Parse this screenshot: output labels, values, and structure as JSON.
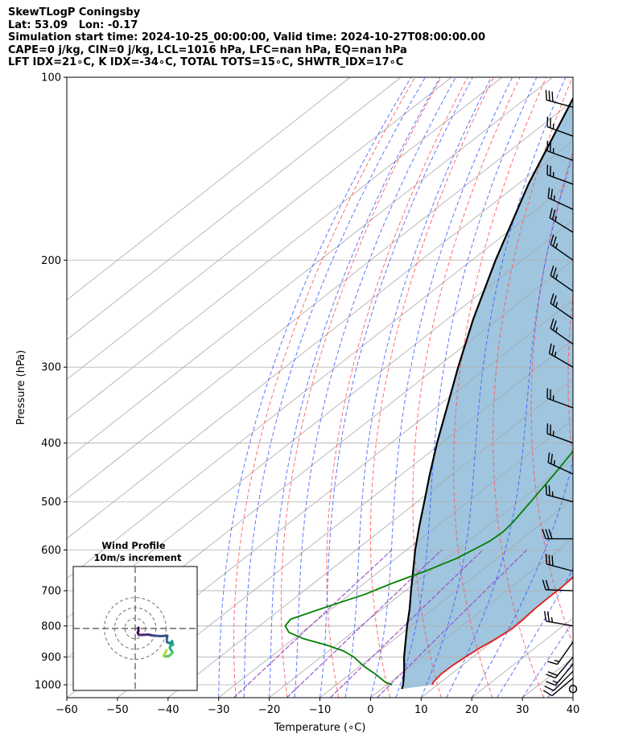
{
  "title_lines": [
    "SkewTLogP Coningsby",
    "Lat: 53.09   Lon: -0.17",
    "Simulation start time: 2024-10-25_00:00:00, Valid time: 2024-10-27T08:00:00.00",
    "CAPE=0 j/kg, CIN=0 j/kg, LCL=1016 hPa, LFC=nan hPa, EQ=nan hPa",
    "LFT IDX=21∘C, K IDX=-34∘C, TOTAL TOTS=15∘C, SHWTR_IDX=17∘C"
  ],
  "chart_data": {
    "type": "skew-t log-p",
    "xlabel": "Temperature (∘C)",
    "ylabel": "Pressure (hPa)",
    "xlim": [
      -60,
      40
    ],
    "ylim": [
      1050,
      100
    ],
    "y_scale": "log",
    "x_ticks": [
      "−60",
      "−50",
      "−40",
      "−30",
      "−20",
      "−10",
      "0",
      "10",
      "20",
      "30",
      "40"
    ],
    "y_ticks": [
      "100",
      "200",
      "300",
      "400",
      "500",
      "600",
      "700",
      "800",
      "900",
      "1000"
    ],
    "grid": true,
    "colors": {
      "temperature": "#e31a1c",
      "dewpoint": "#008000",
      "parcel": "#000000",
      "cape_fill": "#9fc5df",
      "dry_adiabats": "#ff5555",
      "moist_adiabats": "#3355ff",
      "mixing_ratio": "#9a4cc4",
      "isotherms": "#a8a8a8"
    },
    "series": [
      {
        "key": "temperature",
        "points": [
          [
            1000,
            9.0
          ],
          [
            990,
            8.5
          ],
          [
            960,
            8.0
          ],
          [
            930,
            8.1
          ],
          [
            900,
            8.5
          ],
          [
            870,
            9.1
          ],
          [
            840,
            10.0
          ],
          [
            810,
            10.6
          ],
          [
            780,
            10.5
          ],
          [
            750,
            10.1
          ],
          [
            720,
            10.0
          ],
          [
            690,
            10.0
          ],
          [
            660,
            9.6
          ],
          [
            620,
            9.2
          ],
          [
            600,
            8.9
          ],
          [
            550,
            6.0
          ],
          [
            500,
            2.2
          ],
          [
            450,
            -1.8
          ],
          [
            400,
            -6.5
          ],
          [
            350,
            -11.2
          ],
          [
            320,
            -13.6
          ],
          [
            300,
            -15.2
          ],
          [
            280,
            -16.3
          ],
          [
            260,
            -17.5
          ],
          [
            240,
            -18.8
          ],
          [
            220,
            -20.1
          ],
          [
            200,
            -21.6
          ],
          [
            185,
            -23.0
          ],
          [
            170,
            -25.2
          ],
          [
            155,
            -27.0
          ],
          [
            140,
            -28.4
          ],
          [
            130,
            -28.5
          ],
          [
            120,
            -26.9
          ],
          [
            112,
            -24.7
          ],
          [
            106,
            -23.8
          ],
          [
            100,
            -23.0
          ]
        ]
      },
      {
        "key": "dewpoint",
        "points": [
          [
            1000,
            1.0
          ],
          [
            990,
            -1.0
          ],
          [
            960,
            -5.0
          ],
          [
            930,
            -9.5
          ],
          [
            900,
            -13.5
          ],
          [
            880,
            -17.0
          ],
          [
            860,
            -22.0
          ],
          [
            840,
            -28.0
          ],
          [
            820,
            -32.5
          ],
          [
            800,
            -34.9
          ],
          [
            780,
            -35.5
          ],
          [
            760,
            -33.3
          ],
          [
            740,
            -31.0
          ],
          [
            710,
            -27.1
          ],
          [
            680,
            -24.4
          ],
          [
            650,
            -21.0
          ],
          [
            620,
            -18.1
          ],
          [
            600,
            -16.9
          ],
          [
            580,
            -15.8
          ],
          [
            560,
            -15.5
          ],
          [
            540,
            -16.0
          ],
          [
            500,
            -17.6
          ],
          [
            450,
            -19.9
          ],
          [
            400,
            -22.7
          ],
          [
            360,
            -24.6
          ],
          [
            330,
            -27.4
          ],
          [
            300,
            -29.9
          ],
          [
            270,
            -31.8
          ],
          [
            240,
            -34.0
          ],
          [
            220,
            -35.3
          ],
          [
            200,
            -37.0
          ],
          [
            185,
            -39.4
          ],
          [
            170,
            -41.8
          ],
          [
            158,
            -44.3
          ],
          [
            150,
            -46.0
          ],
          [
            140,
            -47.8
          ],
          [
            130,
            -48.3
          ],
          [
            120,
            -48.4
          ],
          [
            112,
            -48.8
          ],
          [
            106,
            -49.5
          ],
          [
            100,
            -50.0
          ]
        ]
      },
      {
        "key": "parcel",
        "points": [
          [
            1016,
            4.0
          ],
          [
            1000,
            3.2
          ],
          [
            950,
            0.0
          ],
          [
            900,
            -3.6
          ],
          [
            850,
            -7.1
          ],
          [
            800,
            -10.8
          ],
          [
            750,
            -14.6
          ],
          [
            700,
            -18.9
          ],
          [
            650,
            -23.4
          ],
          [
            600,
            -28.3
          ],
          [
            550,
            -33.3
          ],
          [
            500,
            -38.6
          ],
          [
            450,
            -44.5
          ],
          [
            400,
            -50.9
          ],
          [
            350,
            -57.8
          ],
          [
            300,
            -65.8
          ],
          [
            250,
            -74.9
          ],
          [
            200,
            -85.3
          ],
          [
            150,
            -97.9
          ],
          [
            100,
            -113.8
          ]
        ]
      }
    ],
    "wind_barbs": [
      {
        "p": 1016,
        "type": "calm"
      },
      {
        "p": 975,
        "dir": 230,
        "kt": 10
      },
      {
        "p": 950,
        "dir": 225,
        "kt": 10
      },
      {
        "p": 925,
        "dir": 220,
        "kt": 15
      },
      {
        "p": 900,
        "dir": 220,
        "kt": 20
      },
      {
        "p": 850,
        "dir": 215,
        "kt": 15
      },
      {
        "p": 800,
        "dir": 280,
        "kt": 25
      },
      {
        "p": 700,
        "dir": 272,
        "kt": 20
      },
      {
        "p": 650,
        "dir": 285,
        "kt": 30
      },
      {
        "p": 575,
        "dir": 270,
        "kt": 30
      },
      {
        "p": 500,
        "dir": 285,
        "kt": 25
      },
      {
        "p": 450,
        "dir": 295,
        "kt": 25
      },
      {
        "p": 400,
        "dir": 290,
        "kt": 25
      },
      {
        "p": 350,
        "dir": 290,
        "kt": 25
      },
      {
        "p": 300,
        "dir": 300,
        "kt": 25
      },
      {
        "p": 275,
        "dir": 305,
        "kt": 25
      },
      {
        "p": 250,
        "dir": 305,
        "kt": 25
      },
      {
        "p": 225,
        "dir": 305,
        "kt": 25
      },
      {
        "p": 200,
        "dir": 305,
        "kt": 25
      },
      {
        "p": 180,
        "dir": 302,
        "kt": 25
      },
      {
        "p": 165,
        "dir": 295,
        "kt": 25
      },
      {
        "p": 150,
        "dir": 290,
        "kt": 25
      },
      {
        "p": 137,
        "dir": 290,
        "kt": 25
      },
      {
        "p": 125,
        "dir": 290,
        "kt": 25
      },
      {
        "p": 112,
        "dir": 285,
        "kt": 30
      }
    ],
    "hodograph": {
      "title_lines": [
        "Wind Profile",
        "10m/s increment"
      ],
      "ring_step_ms": 10,
      "ring_count": 3,
      "points_uv": [
        [
          0.0,
          0.0
        ],
        [
          0.0,
          -2.0
        ],
        [
          -0.4,
          -3.0
        ],
        [
          0.2,
          -4.5
        ],
        [
          3.0,
          -4.4
        ],
        [
          6.0,
          -4.3
        ],
        [
          9.0,
          -4.9
        ],
        [
          13.5,
          -5.2
        ],
        [
          17.5,
          -5.0
        ],
        [
          17.2,
          -7.0
        ],
        [
          17.3,
          -9.0
        ],
        [
          18.6,
          -9.4
        ],
        [
          19.3,
          -9.8
        ],
        [
          20.4,
          -8.4
        ],
        [
          20.5,
          -9.4
        ],
        [
          21.0,
          -10.5
        ],
        [
          19.3,
          -11.5
        ],
        [
          19.0,
          -12.5
        ],
        [
          20.8,
          -15.5
        ],
        [
          18.6,
          -17.5
        ],
        [
          16.8,
          -17.8
        ],
        [
          15.3,
          -17.5
        ],
        [
          16.0,
          -16.0
        ],
        [
          17.0,
          -14.0
        ]
      ]
    }
  }
}
